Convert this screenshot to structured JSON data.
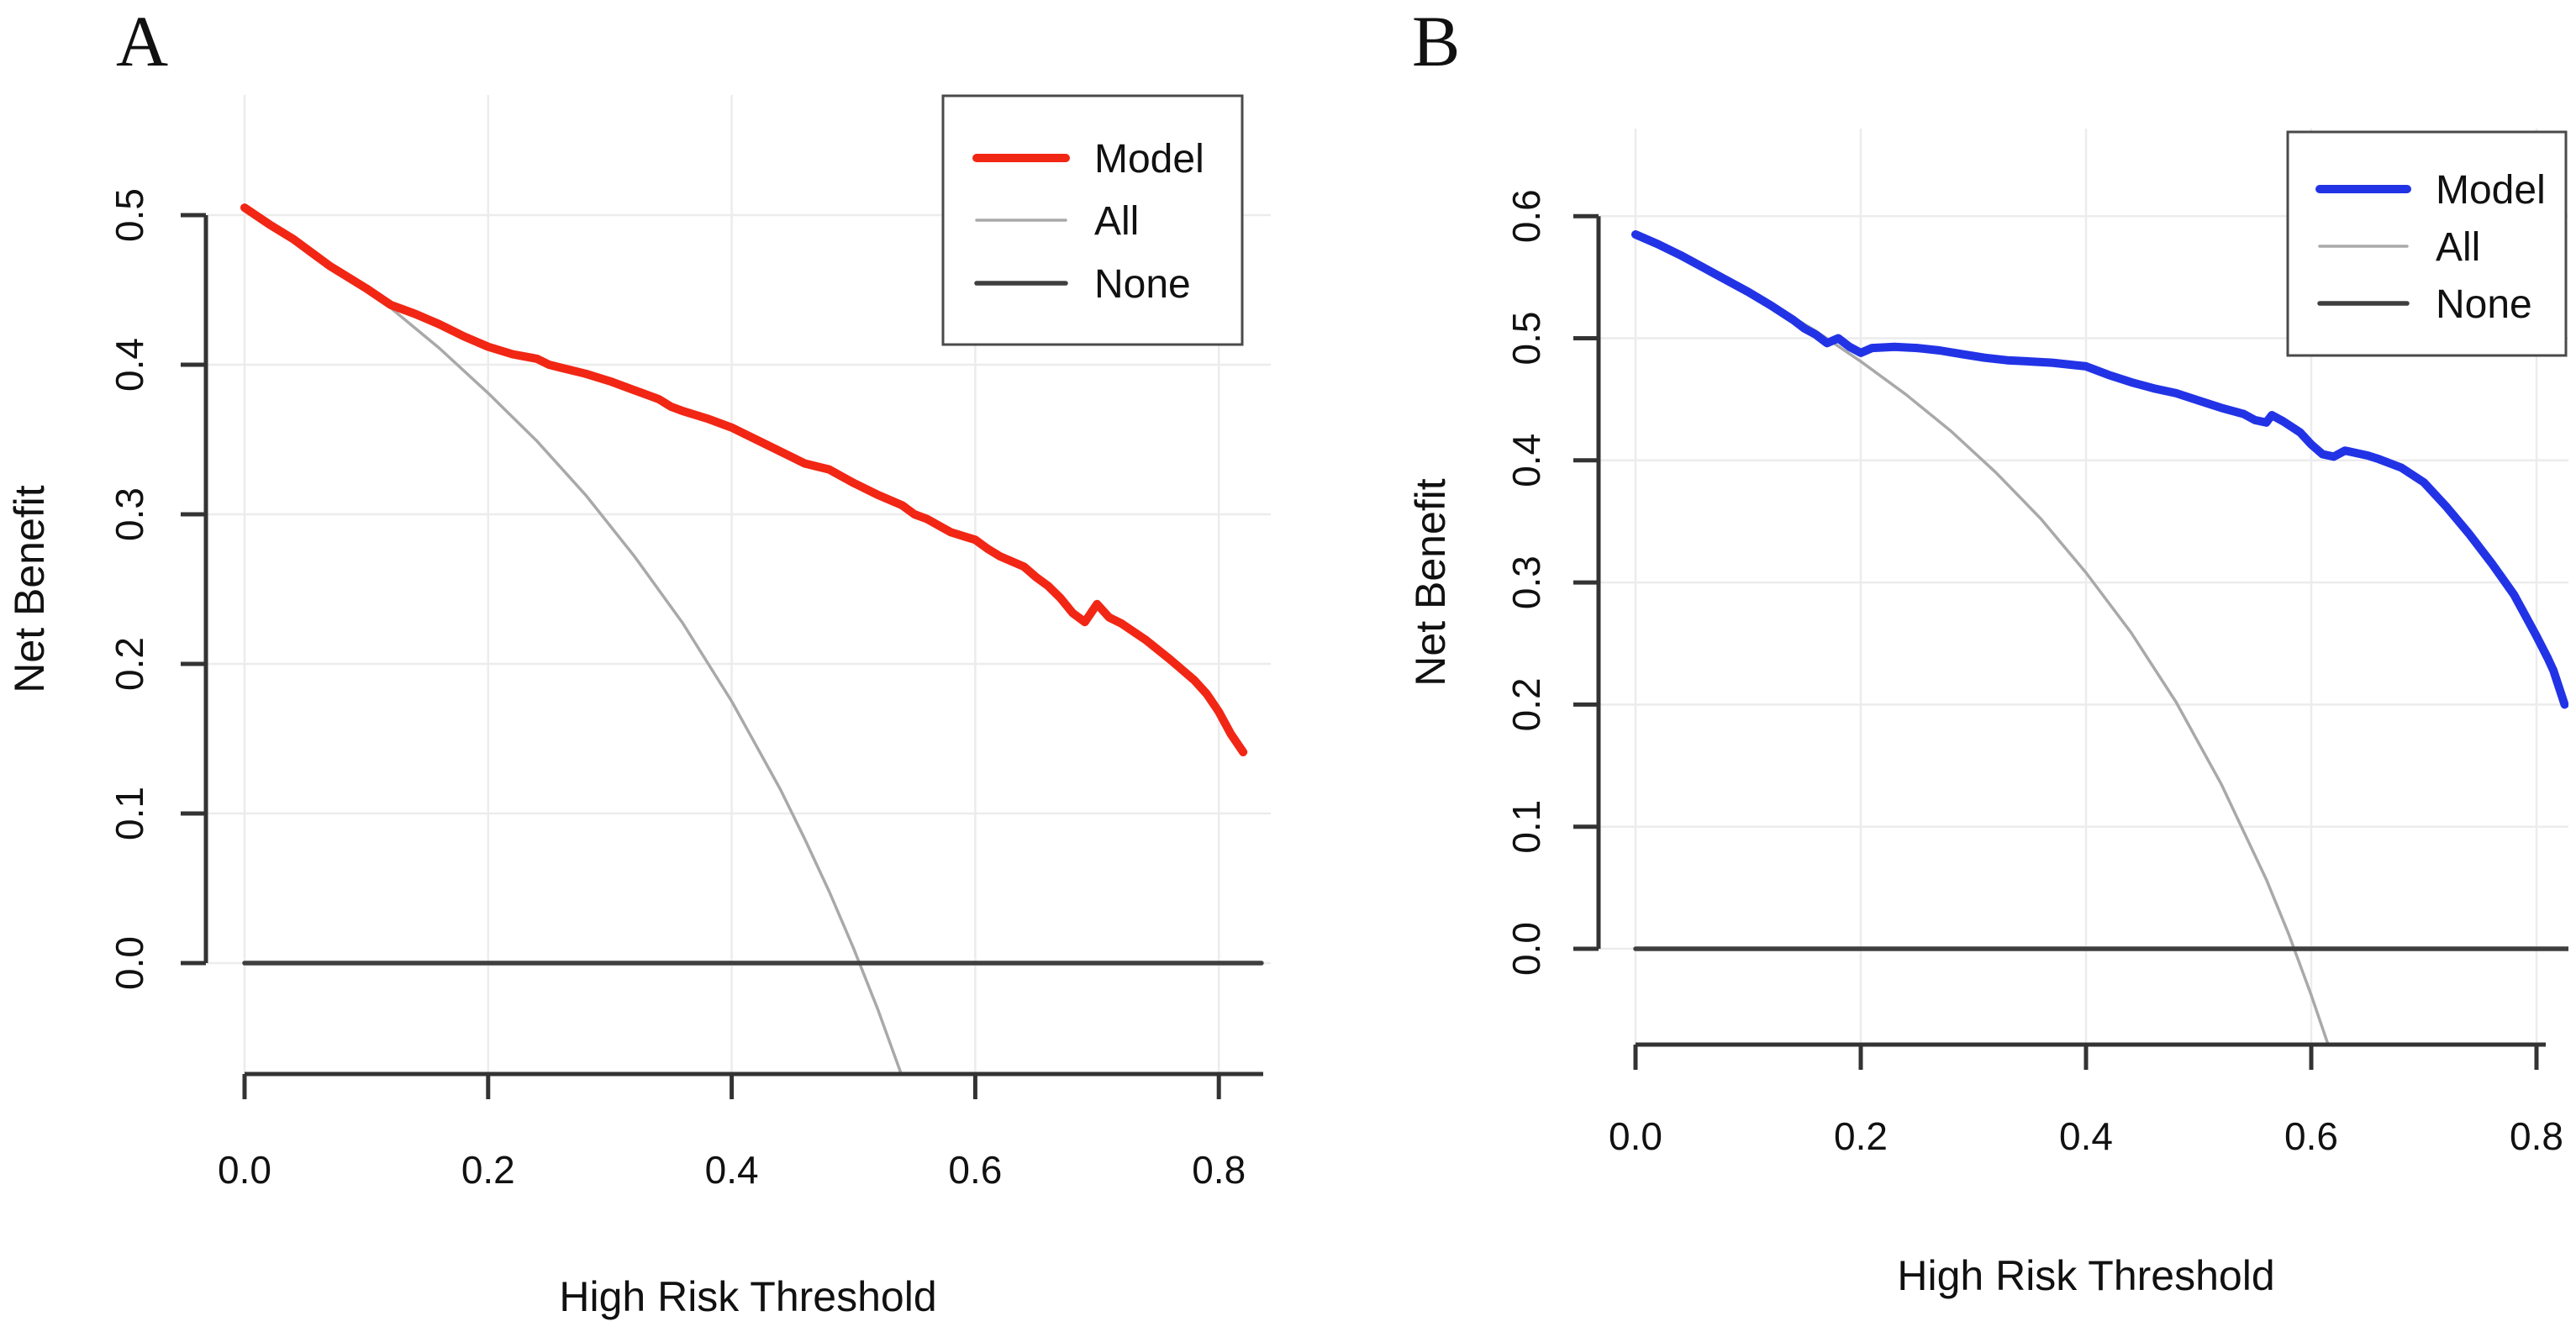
{
  "figure": {
    "background": "#ffffff",
    "colors": {
      "grid": "#ececec",
      "axis": "#333333",
      "text": "#111111",
      "legend_border": "#4a4a4a",
      "model_red": "#f22614",
      "model_blue": "#2233e6",
      "all_gray": "#a9a9a9",
      "none_dark": "#3f3f3f"
    }
  },
  "chart_data": [
    {
      "id": "A",
      "panel_label": "A",
      "type": "line",
      "title": "",
      "xlabel": "High Risk Threshold",
      "ylabel": "Net Benefit",
      "xlim": [
        0,
        0.85
      ],
      "ylim": [
        -0.075,
        0.58
      ],
      "grid": true,
      "x_ticks": [
        0,
        0.2,
        0.4,
        0.6,
        0.8
      ],
      "x_tick_labels": [
        "0.0",
        "0.2",
        "0.4",
        "0.6",
        "0.8"
      ],
      "y_ticks": [
        0,
        0.1,
        0.2,
        0.3,
        0.4,
        0.5
      ],
      "y_tick_labels": [
        "0.0",
        "0.1",
        "0.2",
        "0.3",
        "0.4",
        "0.5"
      ],
      "legend": {
        "position": "top-right",
        "entries": [
          "Model",
          "All",
          "None"
        ]
      },
      "series": [
        {
          "name": "Model",
          "color": "#f22614",
          "width": 10,
          "points": [
            [
              0,
              0.505
            ],
            [
              0.02,
              0.494
            ],
            [
              0.04,
              0.484
            ],
            [
              0.06,
              0.472
            ],
            [
              0.07,
              0.466
            ],
            [
              0.08,
              0.461
            ],
            [
              0.1,
              0.451
            ],
            [
              0.12,
              0.44
            ],
            [
              0.14,
              0.434
            ],
            [
              0.16,
              0.427
            ],
            [
              0.18,
              0.419
            ],
            [
              0.2,
              0.412
            ],
            [
              0.22,
              0.407
            ],
            [
              0.24,
              0.404
            ],
            [
              0.25,
              0.4
            ],
            [
              0.26,
              0.398
            ],
            [
              0.28,
              0.394
            ],
            [
              0.3,
              0.389
            ],
            [
              0.32,
              0.383
            ],
            [
              0.34,
              0.377
            ],
            [
              0.35,
              0.372
            ],
            [
              0.36,
              0.369
            ],
            [
              0.38,
              0.364
            ],
            [
              0.4,
              0.358
            ],
            [
              0.42,
              0.35
            ],
            [
              0.44,
              0.342
            ],
            [
              0.45,
              0.338
            ],
            [
              0.46,
              0.334
            ],
            [
              0.48,
              0.33
            ],
            [
              0.5,
              0.321
            ],
            [
              0.52,
              0.313
            ],
            [
              0.54,
              0.306
            ],
            [
              0.55,
              0.3
            ],
            [
              0.56,
              0.297
            ],
            [
              0.58,
              0.288
            ],
            [
              0.6,
              0.283
            ],
            [
              0.61,
              0.277
            ],
            [
              0.62,
              0.272
            ],
            [
              0.64,
              0.265
            ],
            [
              0.65,
              0.258
            ],
            [
              0.66,
              0.252
            ],
            [
              0.67,
              0.244
            ],
            [
              0.68,
              0.234
            ],
            [
              0.69,
              0.228
            ],
            [
              0.7,
              0.24
            ],
            [
              0.71,
              0.231
            ],
            [
              0.72,
              0.227
            ],
            [
              0.74,
              0.216
            ],
            [
              0.76,
              0.203
            ],
            [
              0.78,
              0.189
            ],
            [
              0.79,
              0.18
            ],
            [
              0.8,
              0.168
            ],
            [
              0.81,
              0.153
            ],
            [
              0.82,
              0.141
            ]
          ]
        },
        {
          "name": "All",
          "color": "#a9a9a9",
          "width": 3.5,
          "points": [
            [
              0,
              0.505
            ],
            [
              0.04,
              0.484
            ],
            [
              0.08,
              0.462
            ],
            [
              0.12,
              0.438
            ],
            [
              0.16,
              0.411
            ],
            [
              0.2,
              0.381
            ],
            [
              0.24,
              0.349
            ],
            [
              0.28,
              0.313
            ],
            [
              0.32,
              0.272
            ],
            [
              0.36,
              0.227
            ],
            [
              0.4,
              0.175
            ],
            [
              0.44,
              0.116
            ],
            [
              0.46,
              0.083
            ],
            [
              0.48,
              0.048
            ],
            [
              0.5,
              0.01
            ],
            [
              0.52,
              -0.031
            ],
            [
              0.54,
              -0.076
            ]
          ]
        },
        {
          "name": "None",
          "color": "#3f3f3f",
          "width": 5.5,
          "points": [
            [
              0,
              0
            ],
            [
              0.835,
              0
            ]
          ]
        }
      ]
    },
    {
      "id": "B",
      "panel_label": "B",
      "type": "line",
      "title": "",
      "xlabel": "High Risk Threshold",
      "ylabel": "Net Benefit",
      "xlim": [
        0,
        0.85
      ],
      "ylim": [
        -0.08,
        0.67
      ],
      "grid": true,
      "x_ticks": [
        0,
        0.2,
        0.4,
        0.6,
        0.8
      ],
      "x_tick_labels": [
        "0.0",
        "0.2",
        "0.4",
        "0.6",
        "0.8"
      ],
      "y_ticks": [
        0,
        0.1,
        0.2,
        0.3,
        0.4,
        0.5,
        0.6
      ],
      "y_tick_labels": [
        "0.0",
        "0.1",
        "0.2",
        "0.3",
        "0.4",
        "0.5",
        "0.6"
      ],
      "legend": {
        "position": "top-right",
        "entries": [
          "Model",
          "All",
          "None"
        ]
      },
      "series": [
        {
          "name": "Model",
          "color": "#2233e6",
          "width": 10,
          "points": [
            [
              0,
              0.585
            ],
            [
              0.02,
              0.577
            ],
            [
              0.04,
              0.568
            ],
            [
              0.06,
              0.558
            ],
            [
              0.08,
              0.548
            ],
            [
              0.1,
              0.538
            ],
            [
              0.12,
              0.527
            ],
            [
              0.14,
              0.515
            ],
            [
              0.15,
              0.508
            ],
            [
              0.16,
              0.503
            ],
            [
              0.17,
              0.496
            ],
            [
              0.18,
              0.5
            ],
            [
              0.19,
              0.493
            ],
            [
              0.2,
              0.488
            ],
            [
              0.21,
              0.492
            ],
            [
              0.23,
              0.493
            ],
            [
              0.25,
              0.492
            ],
            [
              0.27,
              0.49
            ],
            [
              0.29,
              0.487
            ],
            [
              0.31,
              0.484
            ],
            [
              0.33,
              0.482
            ],
            [
              0.35,
              0.481
            ],
            [
              0.37,
              0.48
            ],
            [
              0.39,
              0.478
            ],
            [
              0.4,
              0.477
            ],
            [
              0.42,
              0.47
            ],
            [
              0.44,
              0.464
            ],
            [
              0.46,
              0.459
            ],
            [
              0.48,
              0.455
            ],
            [
              0.5,
              0.449
            ],
            [
              0.52,
              0.443
            ],
            [
              0.54,
              0.438
            ],
            [
              0.55,
              0.433
            ],
            [
              0.56,
              0.431
            ],
            [
              0.565,
              0.437
            ],
            [
              0.575,
              0.432
            ],
            [
              0.59,
              0.423
            ],
            [
              0.6,
              0.413
            ],
            [
              0.61,
              0.405
            ],
            [
              0.62,
              0.403
            ],
            [
              0.63,
              0.408
            ],
            [
              0.64,
              0.406
            ],
            [
              0.65,
              0.404
            ],
            [
              0.66,
              0.401
            ],
            [
              0.68,
              0.394
            ],
            [
              0.7,
              0.382
            ],
            [
              0.72,
              0.362
            ],
            [
              0.74,
              0.34
            ],
            [
              0.76,
              0.316
            ],
            [
              0.77,
              0.303
            ],
            [
              0.78,
              0.29
            ],
            [
              0.79,
              0.273
            ],
            [
              0.8,
              0.256
            ],
            [
              0.81,
              0.238
            ],
            [
              0.815,
              0.228
            ],
            [
              0.82,
              0.214
            ],
            [
              0.825,
              0.2
            ]
          ]
        },
        {
          "name": "All",
          "color": "#a9a9a9",
          "width": 3.5,
          "points": [
            [
              0,
              0.585
            ],
            [
              0.04,
              0.568
            ],
            [
              0.08,
              0.549
            ],
            [
              0.12,
              0.528
            ],
            [
              0.16,
              0.506
            ],
            [
              0.2,
              0.481
            ],
            [
              0.24,
              0.454
            ],
            [
              0.28,
              0.424
            ],
            [
              0.32,
              0.39
            ],
            [
              0.36,
              0.352
            ],
            [
              0.4,
              0.308
            ],
            [
              0.44,
              0.259
            ],
            [
              0.48,
              0.202
            ],
            [
              0.52,
              0.135
            ],
            [
              0.56,
              0.057
            ],
            [
              0.58,
              0.012
            ],
            [
              0.6,
              -0.038
            ],
            [
              0.62,
              -0.092
            ]
          ]
        },
        {
          "name": "None",
          "color": "#3f3f3f",
          "width": 5.5,
          "points": [
            [
              0,
              0
            ],
            [
              0.835,
              0
            ]
          ]
        }
      ]
    }
  ]
}
